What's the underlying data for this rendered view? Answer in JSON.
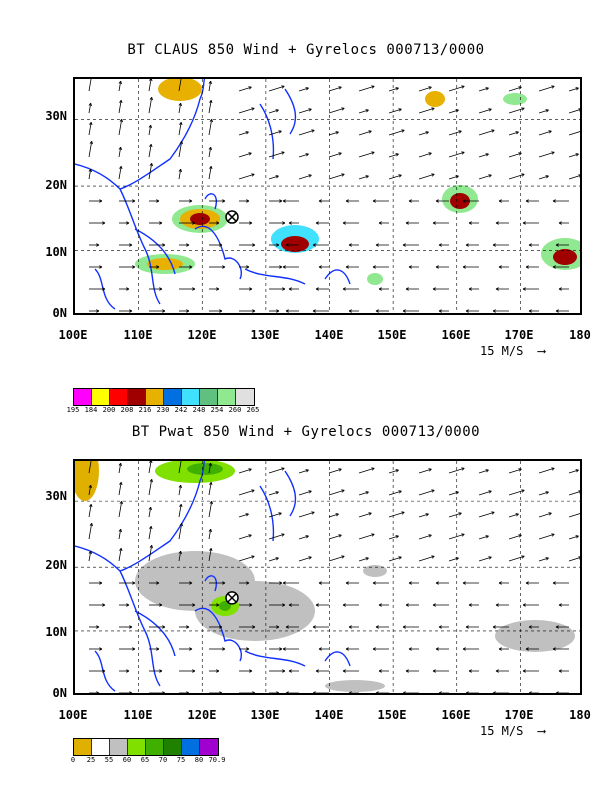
{
  "panels": [
    {
      "id": "claus",
      "title": "BT CLAUS 850 Wind + Gyrelocs 000713/0000",
      "y_labels": [
        "30N",
        "20N",
        "10N",
        "0N"
      ],
      "x_labels": [
        "100E",
        "110E",
        "120E",
        "130E",
        "140E",
        "150E",
        "160E",
        "170E",
        "180"
      ],
      "scale_label": "15 M/S",
      "legend": {
        "values": [
          "195",
          "184",
          "200",
          "208",
          "216",
          "230",
          "242",
          "248",
          "254",
          "260",
          "265"
        ],
        "colors": [
          "#ff00ff",
          "#ffff00",
          "#ff0000",
          "#a00000",
          "#e8b000",
          "#0070e0",
          "#40e0ff",
          "#60c080",
          "#90e890",
          "#e0e0e0"
        ]
      }
    },
    {
      "id": "pwat",
      "title": "BT Pwat 850 Wind + Gyrelocs 000713/0000",
      "y_labels": [
        "30N",
        "20N",
        "10N",
        "0N"
      ],
      "x_labels": [
        "100E",
        "110E",
        "120E",
        "130E",
        "140E",
        "150E",
        "160E",
        "170E",
        "180"
      ],
      "scale_label": "15 M/S",
      "legend": {
        "values": [
          "0",
          "25",
          "55",
          "60",
          "65",
          "70",
          "75",
          "80",
          "70.9"
        ],
        "colors": [
          "#e0b000",
          "#ffffff",
          "#c0c0c0",
          "#80e000",
          "#40b000",
          "#208000",
          "#0070e0",
          "#a000d0"
        ]
      }
    }
  ]
}
